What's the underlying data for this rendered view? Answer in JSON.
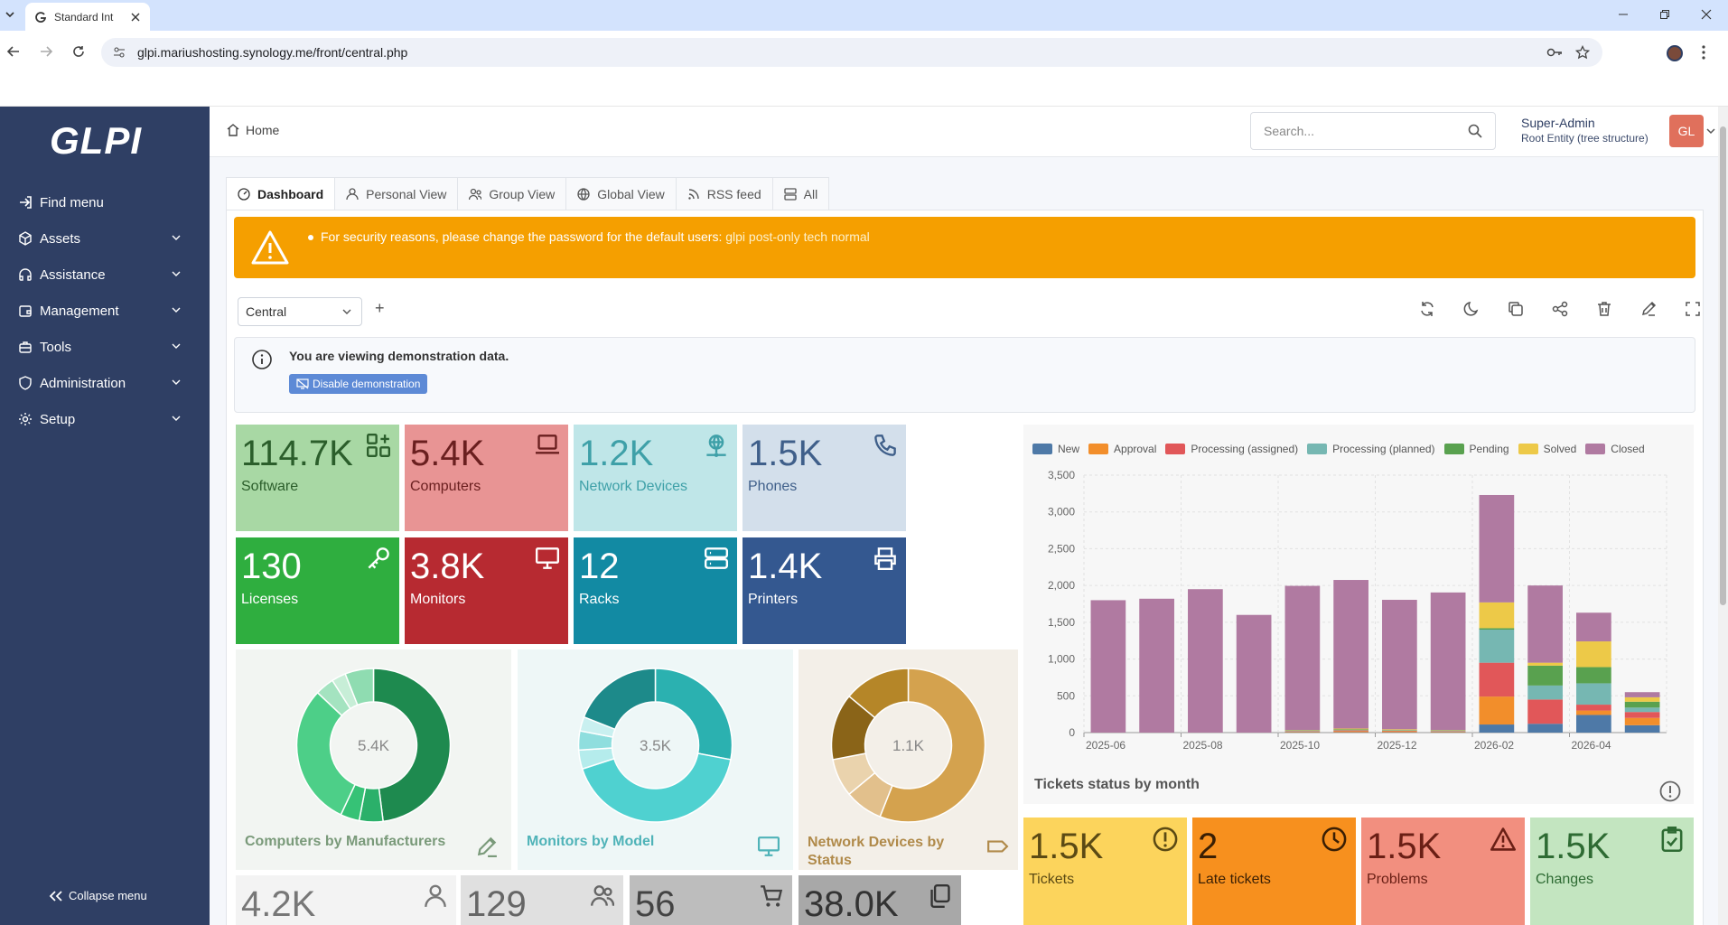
{
  "browser": {
    "tab_title": "Standard Int",
    "url": "glpi.mariushosting.synology.me/front/central.php"
  },
  "sidebar": {
    "logo": "GLPI",
    "items": [
      {
        "label": "Find menu",
        "icon": "sign-in-icon",
        "chevron": false
      },
      {
        "label": "Assets",
        "icon": "cube-icon",
        "chevron": true
      },
      {
        "label": "Assistance",
        "icon": "headset-icon",
        "chevron": true
      },
      {
        "label": "Management",
        "icon": "wallet-icon",
        "chevron": true
      },
      {
        "label": "Tools",
        "icon": "briefcase-icon",
        "chevron": true
      },
      {
        "label": "Administration",
        "icon": "shield-icon",
        "chevron": true
      },
      {
        "label": "Setup",
        "icon": "gear-icon",
        "chevron": true
      }
    ],
    "collapse_label": "Collapse menu"
  },
  "header": {
    "breadcrumb": "Home",
    "search_placeholder": "Search...",
    "user_name": "Super-Admin",
    "user_entity": "Root Entity (tree structure)",
    "avatar_initials": "GL"
  },
  "tabs": [
    {
      "label": "Dashboard",
      "active": true
    },
    {
      "label": "Personal View"
    },
    {
      "label": "Group View"
    },
    {
      "label": "Global View"
    },
    {
      "label": "RSS feed"
    },
    {
      "label": "All"
    }
  ],
  "alert": {
    "message": "For security reasons, please change the password for the default users:",
    "users": "glpi post-only tech normal"
  },
  "dashboard_select": "Central",
  "demo": {
    "text": "You are viewing demonstration data.",
    "button": "Disable demonstration"
  },
  "cards": [
    {
      "num": "114.7K",
      "label": "Software",
      "bg": "#a8d8a4",
      "fg": "#2b5e2b"
    },
    {
      "num": "5.4K",
      "label": "Computers",
      "bg": "#e89494",
      "fg": "#6a1f1f"
    },
    {
      "num": "1.2K",
      "label": "Network Devices",
      "bg": "#bfe6e8",
      "fg": "#3ea0a8"
    },
    {
      "num": "1.5K",
      "label": "Phones",
      "bg": "#d3dfeb",
      "fg": "#3f5f8a"
    },
    {
      "num": "130",
      "label": "Licenses",
      "bg": "#2fae3f",
      "fg": "#ffffff"
    },
    {
      "num": "3.8K",
      "label": "Monitors",
      "bg": "#b72a31",
      "fg": "#ffffff"
    },
    {
      "num": "12",
      "label": "Racks",
      "bg": "#128aa3",
      "fg": "#ffffff"
    },
    {
      "num": "1.4K",
      "label": "Printers",
      "bg": "#345890",
      "fg": "#ffffff"
    }
  ],
  "donuts": [
    {
      "title": "Computers by Manufacturers",
      "center": "5.4K",
      "bg": "#f2f5f2",
      "title_color": "#7a9a7a"
    },
    {
      "title": "Monitors by Model",
      "center": "3.5K",
      "bg": "#eef7f7",
      "title_color": "#4fb3b8"
    },
    {
      "title": "Network Devices by Status",
      "center": "1.1K",
      "bg": "#f3efe8",
      "title_color": "#b08a4a"
    }
  ],
  "bottom_cards": [
    {
      "num": "4.2K",
      "bg": "#f3f3f3",
      "fg": "#777"
    },
    {
      "num": "129",
      "bg": "#e0e0e0",
      "fg": "#666"
    },
    {
      "num": "56",
      "bg": "#bdbdbd",
      "fg": "#444"
    },
    {
      "num": "38.0K",
      "bg": "#a8a8a8",
      "fg": "#333"
    }
  ],
  "ticket_cards": [
    {
      "num": "1.5K",
      "label": "Tickets",
      "bg": "#fcd45c",
      "fg": "#5b4a14"
    },
    {
      "num": "2",
      "label": "Late tickets",
      "bg": "#f7901e",
      "fg": "#3a1f04"
    },
    {
      "num": "1.5K",
      "label": "Problems",
      "bg": "#f28f7f",
      "fg": "#6a1f15"
    },
    {
      "num": "1.5K",
      "label": "Changes",
      "bg": "#c3e5c0",
      "fg": "#2e6b33"
    }
  ],
  "chart_data": {
    "type": "bar",
    "stacked": true,
    "title": "Tickets status by month",
    "categories": [
      "2025-06",
      "2025-07",
      "2025-08",
      "2025-09",
      "2025-10",
      "2025-11",
      "2025-12",
      "2026-01",
      "2026-02",
      "2026-03",
      "2026-04",
      "2026-05"
    ],
    "tick_labels": [
      "2025-06",
      "2025-08",
      "2025-10",
      "2025-12",
      "2026-02",
      "2026-04"
    ],
    "ylim": [
      0,
      3500
    ],
    "yticks": [
      "0",
      "500",
      "1,000",
      "1,500",
      "2,000",
      "2,500",
      "3,000",
      "3,500"
    ],
    "legend_position": "top",
    "series": [
      {
        "name": "New",
        "color": "#4e79a7",
        "values": [
          0,
          0,
          0,
          0,
          5,
          5,
          5,
          5,
          110,
          120,
          240,
          100
        ]
      },
      {
        "name": "Approval",
        "color": "#f28e2b",
        "values": [
          0,
          0,
          0,
          0,
          10,
          15,
          15,
          10,
          380,
          0,
          60,
          100
        ]
      },
      {
        "name": "Processing (assigned)",
        "color": "#e15759",
        "values": [
          0,
          0,
          0,
          0,
          5,
          10,
          5,
          5,
          460,
          330,
          80,
          80
        ]
      },
      {
        "name": "Processing (planned)",
        "color": "#76b7b2",
        "values": [
          0,
          0,
          0,
          0,
          5,
          5,
          5,
          5,
          450,
          190,
          290,
          60
        ]
      },
      {
        "name": "Pending",
        "color": "#59a14f",
        "values": [
          0,
          0,
          0,
          0,
          5,
          10,
          5,
          5,
          20,
          270,
          220,
          80
        ]
      },
      {
        "name": "Solved",
        "color": "#edc948",
        "values": [
          0,
          0,
          0,
          0,
          5,
          10,
          10,
          5,
          350,
          40,
          350,
          60
        ]
      },
      {
        "name": "Closed",
        "color": "#b07aa1",
        "values": [
          1800,
          1820,
          1950,
          1600,
          1960,
          2020,
          1760,
          1870,
          1460,
          1050,
          390,
          70
        ]
      }
    ]
  }
}
